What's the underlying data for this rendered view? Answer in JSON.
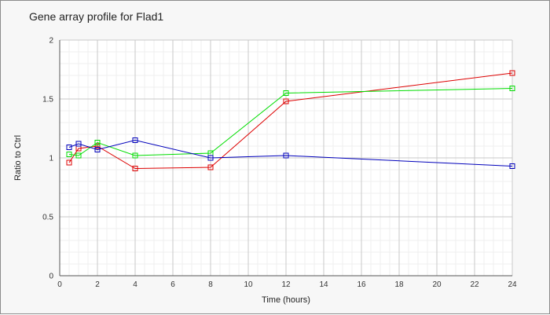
{
  "chart_data": {
    "type": "line",
    "title": "Gene array profile for Flad1",
    "xlabel": "Time (hours)",
    "ylabel": "Ratio to Ctrl",
    "xlim": [
      0,
      24
    ],
    "ylim": [
      0,
      2
    ],
    "x_ticks": [
      0,
      2,
      4,
      6,
      8,
      10,
      12,
      14,
      16,
      18,
      20,
      22,
      24
    ],
    "y_ticks": [
      0,
      0.5,
      1,
      1.5,
      2
    ],
    "y_tick_labels": [
      "0",
      "0.5",
      "1",
      "1.5",
      "2"
    ],
    "grid": true,
    "legend": "none",
    "marker": "square",
    "series": [
      {
        "color": "#dd0000",
        "x": [
          0.5,
          1,
          2,
          4,
          8,
          12,
          24
        ],
        "y": [
          0.96,
          1.08,
          1.1,
          0.91,
          0.92,
          1.48,
          1.72
        ]
      },
      {
        "color": "#00dd00",
        "x": [
          0.5,
          1,
          2,
          4,
          8,
          12,
          24
        ],
        "y": [
          1.03,
          1.02,
          1.13,
          1.02,
          1.04,
          1.55,
          1.59
        ]
      },
      {
        "color": "#0000bb",
        "x": [
          0.5,
          1,
          2,
          4,
          8,
          12,
          24
        ],
        "y": [
          1.09,
          1.12,
          1.07,
          1.15,
          1.0,
          1.02,
          0.93
        ]
      }
    ]
  }
}
